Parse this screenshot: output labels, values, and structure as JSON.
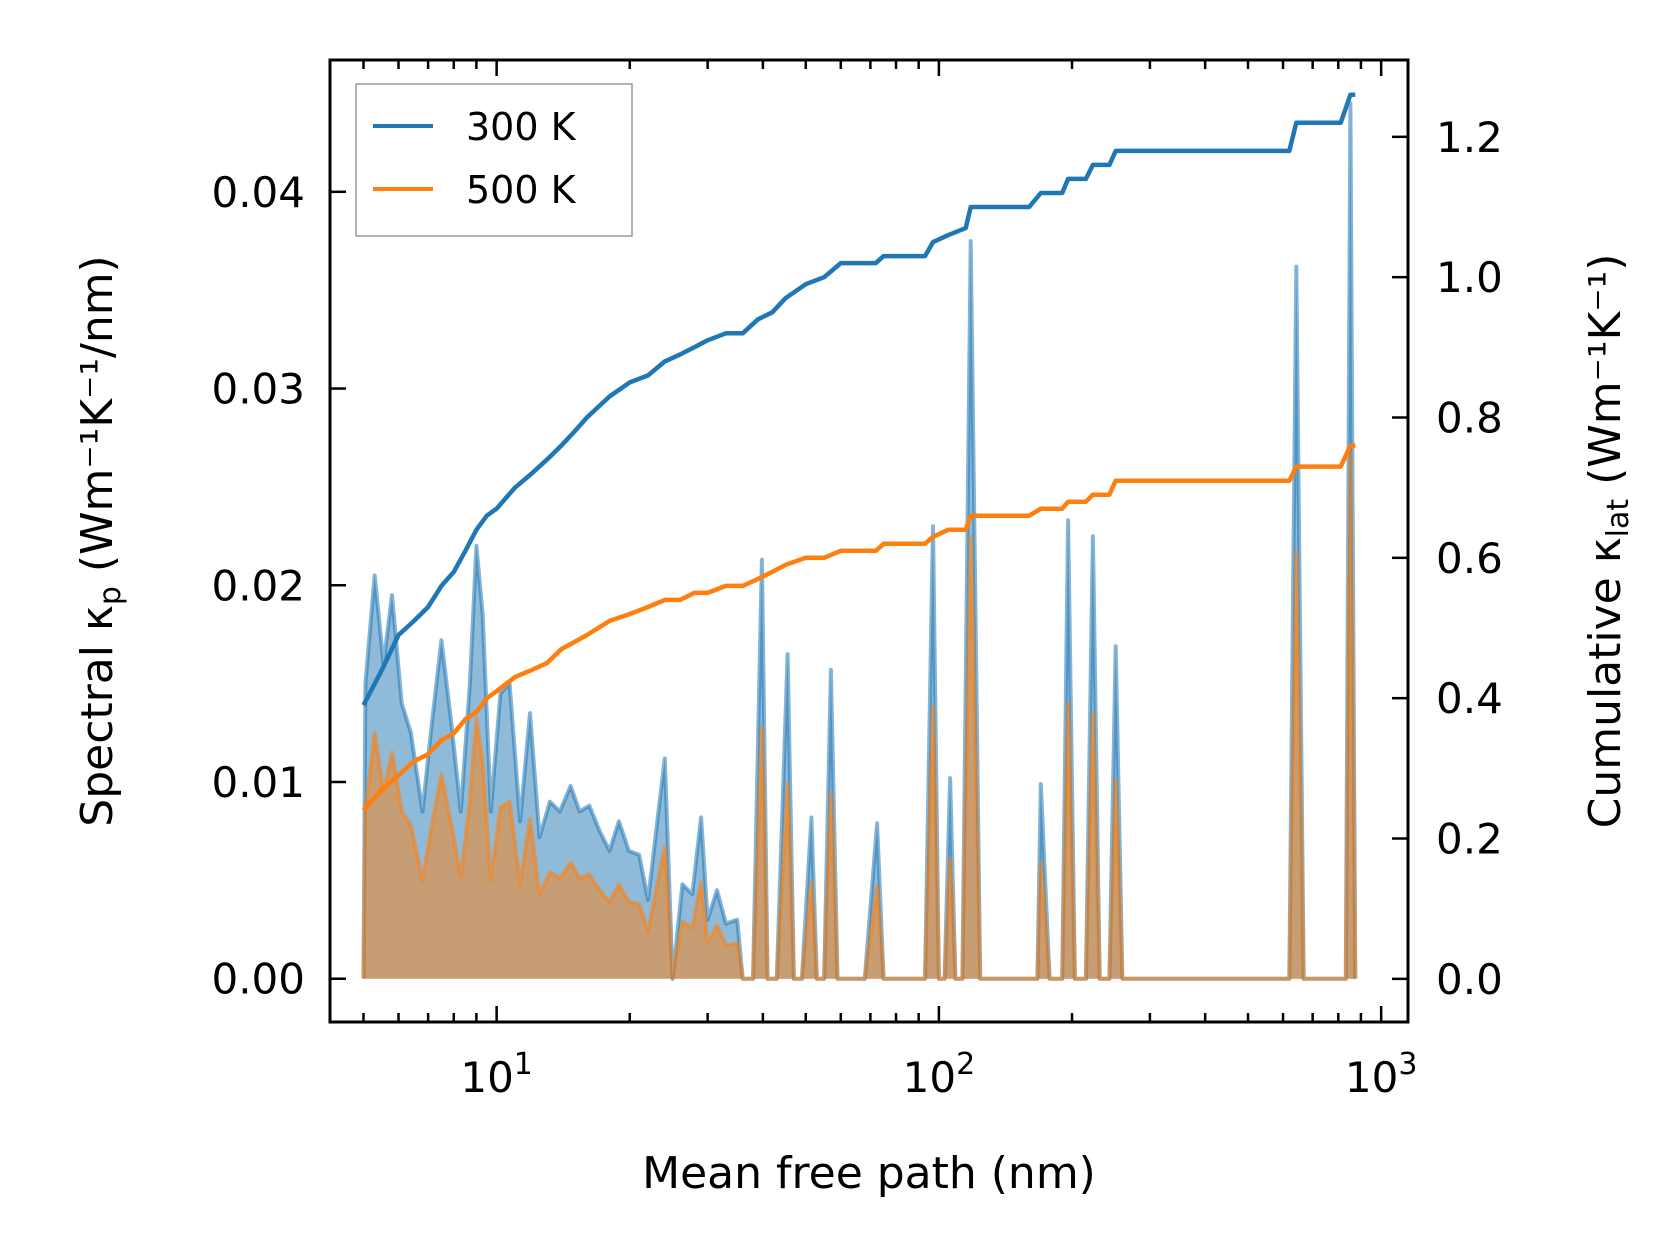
{
  "chart_data": {
    "type": "line",
    "x_scale": "log",
    "xlabel": "Mean free path (nm)",
    "ylabel_left": {
      "main": "Spectral κ",
      "sub": "p",
      "unit": " (Wm⁻¹K⁻¹/nm)"
    },
    "ylabel_right": {
      "main": "Cumulative κ",
      "sub": "lat",
      "unit": " (Wm⁻¹K⁻¹)"
    },
    "xlim": [
      4.2,
      1150
    ],
    "ylim_left": [
      -0.0022,
      0.0467
    ],
    "ylim_right": [
      -0.0615,
      1.3095
    ],
    "x_ticks": [
      {
        "value": 10,
        "base": "10",
        "exp": "1"
      },
      {
        "value": 100,
        "base": "10",
        "exp": "2"
      },
      {
        "value": 1000,
        "base": "10",
        "exp": "3"
      }
    ],
    "y_ticks_left": [
      {
        "value": 0.0,
        "label": "0.00"
      },
      {
        "value": 0.01,
        "label": "0.01"
      },
      {
        "value": 0.02,
        "label": "0.02"
      },
      {
        "value": 0.03,
        "label": "0.03"
      },
      {
        "value": 0.04,
        "label": "0.04"
      }
    ],
    "y_ticks_right": [
      {
        "value": 0.0,
        "label": "0.0"
      },
      {
        "value": 0.2,
        "label": "0.2"
      },
      {
        "value": 0.4,
        "label": "0.4"
      },
      {
        "value": 0.6,
        "label": "0.6"
      },
      {
        "value": 0.8,
        "label": "0.8"
      },
      {
        "value": 1.0,
        "label": "1.0"
      },
      {
        "value": 1.2,
        "label": "1.2"
      }
    ],
    "legend": {
      "position": "upper-left",
      "entries": [
        {
          "label": "300 K",
          "color": "#1f77b4"
        },
        {
          "label": "500 K",
          "color": "#ff7f0e"
        }
      ]
    },
    "spectral_series": [
      {
        "name": "300 K spectral",
        "color": "#1f77b4",
        "axis": "left",
        "points": [
          [
            5.0,
            0.0
          ],
          [
            5.05,
            0.015
          ],
          [
            5.3,
            0.0205
          ],
          [
            5.55,
            0.016
          ],
          [
            5.8,
            0.0195
          ],
          [
            6.1,
            0.014
          ],
          [
            6.4,
            0.0125
          ],
          [
            6.8,
            0.0085
          ],
          [
            7.1,
            0.0125
          ],
          [
            7.5,
            0.0172
          ],
          [
            7.9,
            0.013
          ],
          [
            8.3,
            0.0085
          ],
          [
            8.7,
            0.015
          ],
          [
            9.0,
            0.022
          ],
          [
            9.3,
            0.0185
          ],
          [
            9.7,
            0.0085
          ],
          [
            10.2,
            0.0145
          ],
          [
            10.7,
            0.015
          ],
          [
            11.3,
            0.008
          ],
          [
            11.9,
            0.0135
          ],
          [
            12.5,
            0.0072
          ],
          [
            13.2,
            0.009
          ],
          [
            13.9,
            0.0085
          ],
          [
            14.7,
            0.0098
          ],
          [
            15.4,
            0.0085
          ],
          [
            16.2,
            0.0088
          ],
          [
            17.1,
            0.0075
          ],
          [
            18.0,
            0.0065
          ],
          [
            18.9,
            0.008
          ],
          [
            19.9,
            0.0065
          ],
          [
            21.0,
            0.0063
          ],
          [
            22.0,
            0.004
          ],
          [
            23.0,
            0.0077
          ],
          [
            24.0,
            0.0112
          ],
          [
            25.0,
            0.0
          ],
          [
            26.3,
            0.0048
          ],
          [
            27.7,
            0.0043
          ],
          [
            29.0,
            0.0082
          ],
          [
            30.0,
            0.003
          ],
          [
            31.5,
            0.0045
          ],
          [
            33.0,
            0.0028
          ],
          [
            35.0,
            0.003
          ],
          [
            36.0,
            0.0
          ],
          [
            38.0,
            0.0
          ],
          [
            39.8,
            0.0213
          ],
          [
            41.0,
            0.0
          ],
          [
            43.0,
            0.0
          ],
          [
            45.5,
            0.0165
          ],
          [
            47.0,
            0.0
          ],
          [
            49.0,
            0.0
          ],
          [
            51.5,
            0.0082
          ],
          [
            53.0,
            0.0
          ],
          [
            55.0,
            0.0
          ],
          [
            57.0,
            0.0157
          ],
          [
            59.0,
            0.0
          ],
          [
            62.0,
            0.0
          ],
          [
            68.0,
            0.0
          ],
          [
            72.5,
            0.0079
          ],
          [
            75.0,
            0.0
          ],
          [
            93.0,
            0.0
          ],
          [
            97.0,
            0.023
          ],
          [
            100.0,
            0.0
          ],
          [
            103.0,
            0.0
          ],
          [
            106.0,
            0.0102
          ],
          [
            109.0,
            0.0
          ],
          [
            113.0,
            0.0
          ],
          [
            118.0,
            0.0375
          ],
          [
            124.0,
            0.0
          ],
          [
            160.0,
            0.0
          ],
          [
            167.0,
            0.0
          ],
          [
            170.0,
            0.0099
          ],
          [
            178.0,
            0.0
          ],
          [
            190.0,
            0.0
          ],
          [
            196.0,
            0.0233
          ],
          [
            203.0,
            0.0
          ],
          [
            215.0,
            0.0
          ],
          [
            223.0,
            0.0225
          ],
          [
            231.0,
            0.0
          ],
          [
            243.0,
            0.0
          ],
          [
            251.0,
            0.0169
          ],
          [
            260.0,
            0.0
          ],
          [
            600.0,
            0.0
          ],
          [
            620.0,
            0.0
          ],
          [
            643.0,
            0.0362
          ],
          [
            668.0,
            0.0
          ],
          [
            810.0,
            0.0
          ],
          [
            832.0,
            0.0
          ],
          [
            852.0,
            0.0445
          ],
          [
            874.0,
            0.0
          ]
        ]
      },
      {
        "name": "500 K spectral",
        "color": "#ff7f0e",
        "axis": "left",
        "points": [
          [
            5.0,
            0.0
          ],
          [
            5.05,
            0.0085
          ],
          [
            5.3,
            0.0125
          ],
          [
            5.55,
            0.0095
          ],
          [
            5.8,
            0.0115
          ],
          [
            6.1,
            0.0085
          ],
          [
            6.4,
            0.0078
          ],
          [
            6.8,
            0.005
          ],
          [
            7.1,
            0.0075
          ],
          [
            7.5,
            0.0104
          ],
          [
            7.9,
            0.0078
          ],
          [
            8.3,
            0.0052
          ],
          [
            8.7,
            0.009
          ],
          [
            9.0,
            0.0132
          ],
          [
            9.3,
            0.011
          ],
          [
            9.7,
            0.005
          ],
          [
            10.2,
            0.0087
          ],
          [
            10.7,
            0.009
          ],
          [
            11.3,
            0.0048
          ],
          [
            11.9,
            0.0081
          ],
          [
            12.5,
            0.0043
          ],
          [
            13.2,
            0.0054
          ],
          [
            13.9,
            0.0051
          ],
          [
            14.7,
            0.0059
          ],
          [
            15.4,
            0.0051
          ],
          [
            16.2,
            0.0053
          ],
          [
            17.1,
            0.0045
          ],
          [
            18.0,
            0.0039
          ],
          [
            18.9,
            0.0048
          ],
          [
            19.9,
            0.0039
          ],
          [
            21.0,
            0.0038
          ],
          [
            22.0,
            0.0024
          ],
          [
            23.0,
            0.0046
          ],
          [
            24.0,
            0.0067
          ],
          [
            25.0,
            0.0
          ],
          [
            26.3,
            0.0029
          ],
          [
            27.7,
            0.0026
          ],
          [
            29.0,
            0.0049
          ],
          [
            30.0,
            0.0018
          ],
          [
            31.5,
            0.0027
          ],
          [
            33.0,
            0.0017
          ],
          [
            35.0,
            0.0018
          ],
          [
            36.0,
            0.0
          ],
          [
            38.0,
            0.0
          ],
          [
            39.8,
            0.0128
          ],
          [
            41.0,
            0.0
          ],
          [
            43.0,
            0.0
          ],
          [
            45.5,
            0.0099
          ],
          [
            47.0,
            0.0
          ],
          [
            49.0,
            0.0
          ],
          [
            51.5,
            0.0049
          ],
          [
            53.0,
            0.0
          ],
          [
            55.0,
            0.0
          ],
          [
            57.0,
            0.0094
          ],
          [
            59.0,
            0.0
          ],
          [
            62.0,
            0.0
          ],
          [
            68.0,
            0.0
          ],
          [
            72.5,
            0.0047
          ],
          [
            75.0,
            0.0
          ],
          [
            93.0,
            0.0
          ],
          [
            97.0,
            0.0138
          ],
          [
            100.0,
            0.0
          ],
          [
            103.0,
            0.0
          ],
          [
            106.0,
            0.0061
          ],
          [
            109.0,
            0.0
          ],
          [
            113.0,
            0.0
          ],
          [
            118.0,
            0.0225
          ],
          [
            124.0,
            0.0
          ],
          [
            160.0,
            0.0
          ],
          [
            167.0,
            0.0
          ],
          [
            170.0,
            0.0059
          ],
          [
            178.0,
            0.0
          ],
          [
            190.0,
            0.0
          ],
          [
            196.0,
            0.014
          ],
          [
            203.0,
            0.0
          ],
          [
            215.0,
            0.0
          ],
          [
            223.0,
            0.0135
          ],
          [
            231.0,
            0.0
          ],
          [
            243.0,
            0.0
          ],
          [
            251.0,
            0.0101
          ],
          [
            260.0,
            0.0
          ],
          [
            600.0,
            0.0
          ],
          [
            620.0,
            0.0
          ],
          [
            643.0,
            0.0217
          ],
          [
            668.0,
            0.0
          ],
          [
            810.0,
            0.0
          ],
          [
            832.0,
            0.0
          ],
          [
            852.0,
            0.0267
          ],
          [
            874.0,
            0.0
          ]
        ]
      }
    ],
    "cumulative_series": [
      {
        "name": "300 K",
        "color": "#1f77b4",
        "axis": "right",
        "points": [
          [
            5.0,
            0.39
          ],
          [
            5.5,
            0.44
          ],
          [
            6.0,
            0.49
          ],
          [
            6.5,
            0.51
          ],
          [
            7.0,
            0.53
          ],
          [
            7.5,
            0.56
          ],
          [
            8.0,
            0.58
          ],
          [
            8.5,
            0.61
          ],
          [
            9.0,
            0.64
          ],
          [
            9.5,
            0.66
          ],
          [
            10.0,
            0.67
          ],
          [
            11.0,
            0.7
          ],
          [
            12.0,
            0.72
          ],
          [
            13.0,
            0.74
          ],
          [
            14.0,
            0.76
          ],
          [
            15.0,
            0.78
          ],
          [
            16.0,
            0.8
          ],
          [
            18.0,
            0.83
          ],
          [
            20.0,
            0.85
          ],
          [
            22.0,
            0.86
          ],
          [
            24.0,
            0.88
          ],
          [
            26.0,
            0.89
          ],
          [
            28.0,
            0.9
          ],
          [
            30.0,
            0.91
          ],
          [
            33.0,
            0.92
          ],
          [
            36.0,
            0.92
          ],
          [
            39.0,
            0.94
          ],
          [
            42.0,
            0.95
          ],
          [
            45.0,
            0.97
          ],
          [
            50.0,
            0.99
          ],
          [
            55.0,
            1.0
          ],
          [
            60.0,
            1.02
          ],
          [
            72.0,
            1.02
          ],
          [
            75.0,
            1.03
          ],
          [
            93.0,
            1.03
          ],
          [
            97.0,
            1.05
          ],
          [
            105.0,
            1.06
          ],
          [
            115.0,
            1.07
          ],
          [
            118.0,
            1.1
          ],
          [
            160.0,
            1.1
          ],
          [
            170.0,
            1.12
          ],
          [
            190.0,
            1.12
          ],
          [
            196.0,
            1.14
          ],
          [
            215.0,
            1.14
          ],
          [
            223.0,
            1.16
          ],
          [
            243.0,
            1.16
          ],
          [
            251.0,
            1.18
          ],
          [
            620.0,
            1.18
          ],
          [
            643.0,
            1.22
          ],
          [
            810.0,
            1.22
          ],
          [
            852.0,
            1.26
          ],
          [
            874.0,
            1.26
          ]
        ]
      },
      {
        "name": "500 K",
        "color": "#ff7f0e",
        "axis": "right",
        "points": [
          [
            5.0,
            0.24
          ],
          [
            5.5,
            0.27
          ],
          [
            6.0,
            0.29
          ],
          [
            6.5,
            0.31
          ],
          [
            7.0,
            0.32
          ],
          [
            7.5,
            0.34
          ],
          [
            8.0,
            0.35
          ],
          [
            8.5,
            0.37
          ],
          [
            9.0,
            0.38
          ],
          [
            9.5,
            0.4
          ],
          [
            10.0,
            0.41
          ],
          [
            11.0,
            0.43
          ],
          [
            12.0,
            0.44
          ],
          [
            13.0,
            0.45
          ],
          [
            14.0,
            0.47
          ],
          [
            15.0,
            0.48
          ],
          [
            16.0,
            0.49
          ],
          [
            18.0,
            0.51
          ],
          [
            20.0,
            0.52
          ],
          [
            22.0,
            0.53
          ],
          [
            24.0,
            0.54
          ],
          [
            26.0,
            0.54
          ],
          [
            28.0,
            0.55
          ],
          [
            30.0,
            0.55
          ],
          [
            33.0,
            0.56
          ],
          [
            36.0,
            0.56
          ],
          [
            39.0,
            0.57
          ],
          [
            42.0,
            0.58
          ],
          [
            45.0,
            0.59
          ],
          [
            50.0,
            0.6
          ],
          [
            55.0,
            0.6
          ],
          [
            60.0,
            0.61
          ],
          [
            72.0,
            0.61
          ],
          [
            75.0,
            0.62
          ],
          [
            93.0,
            0.62
          ],
          [
            97.0,
            0.63
          ],
          [
            105.0,
            0.64
          ],
          [
            115.0,
            0.64
          ],
          [
            118.0,
            0.66
          ],
          [
            160.0,
            0.66
          ],
          [
            170.0,
            0.67
          ],
          [
            190.0,
            0.67
          ],
          [
            196.0,
            0.68
          ],
          [
            215.0,
            0.68
          ],
          [
            223.0,
            0.69
          ],
          [
            243.0,
            0.69
          ],
          [
            251.0,
            0.71
          ],
          [
            620.0,
            0.71
          ],
          [
            643.0,
            0.73
          ],
          [
            810.0,
            0.73
          ],
          [
            852.0,
            0.76
          ],
          [
            874.0,
            0.76
          ]
        ]
      }
    ]
  }
}
